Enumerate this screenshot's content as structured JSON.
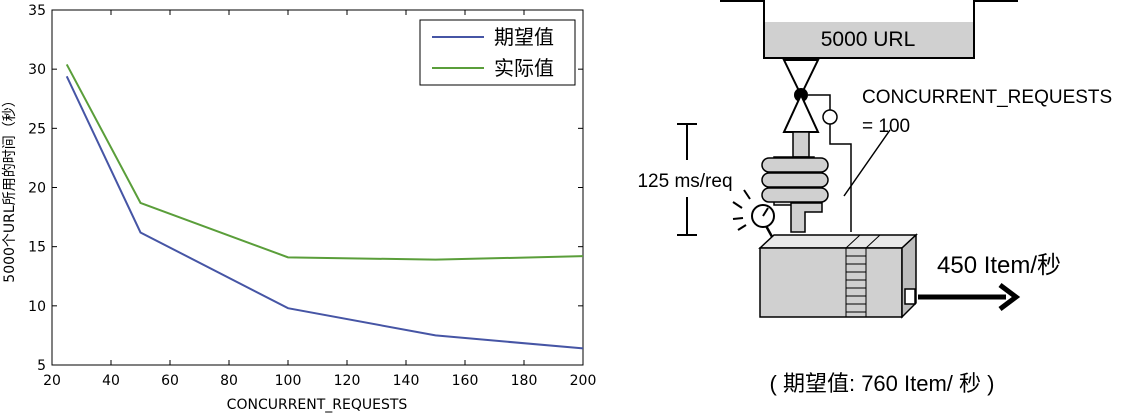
{
  "chart_data": {
    "type": "line",
    "xlabel": "CONCURRENT_REQUESTS",
    "ylabel": "5000个URL所用的时间（秒）",
    "xlim": [
      20,
      200
    ],
    "ylim": [
      5,
      35
    ],
    "xticks": [
      20,
      40,
      60,
      80,
      100,
      120,
      140,
      160,
      180,
      200
    ],
    "yticks": [
      5,
      10,
      15,
      20,
      25,
      30,
      35
    ],
    "grid": false,
    "legend_position": "top-right",
    "series": [
      {
        "name": "期望值",
        "color": "#4655a5",
        "x": [
          25,
          50,
          100,
          150,
          200
        ],
        "y": [
          29.4,
          16.2,
          9.8,
          7.5,
          6.4
        ]
      },
      {
        "name": "实际值",
        "color": "#5a9e3a",
        "x": [
          25,
          50,
          100,
          150,
          200
        ],
        "y": [
          30.4,
          18.7,
          14.1,
          13.9,
          14.2
        ]
      }
    ]
  },
  "diagram": {
    "hopper_label": "5000 URL",
    "concurrency_label_line1": "CONCURRENT_REQUESTS",
    "concurrency_label_line2": "= 100",
    "latency_label": "125 ms/req",
    "throughput_label": "450 Item/秒",
    "expected_label": "( 期望值: 760 Item/ 秒 )"
  }
}
